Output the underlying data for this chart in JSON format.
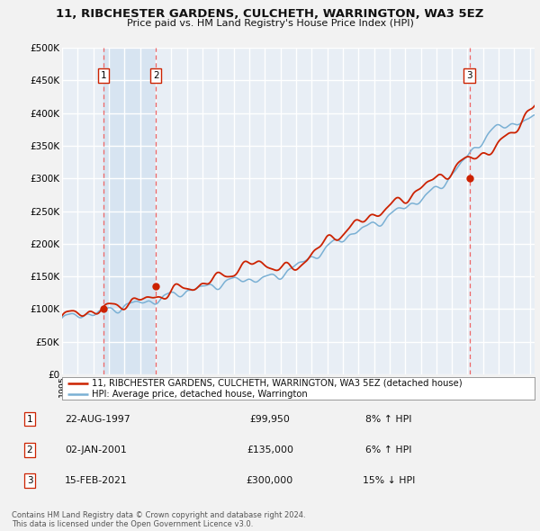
{
  "title": "11, RIBCHESTER GARDENS, CULCHETH, WARRINGTON, WA3 5EZ",
  "subtitle": "Price paid vs. HM Land Registry's House Price Index (HPI)",
  "ylim": [
    0,
    500000
  ],
  "yticks": [
    0,
    50000,
    100000,
    150000,
    200000,
    250000,
    300000,
    350000,
    400000,
    450000,
    500000
  ],
  "xlim_start": 1995.0,
  "xlim_end": 2025.3,
  "background_color": "#f0f0f0",
  "plot_bg_color": "#e8eef5",
  "grid_color": "#ffffff",
  "sale_color": "#cc2200",
  "hpi_color": "#7ab0d4",
  "vline_color": "#ee6666",
  "shade_color": "#d0e0f0",
  "transactions": [
    {
      "date": 1997.64,
      "price": 99950,
      "label": "1"
    },
    {
      "date": 2001.01,
      "price": 135000,
      "label": "2"
    },
    {
      "date": 2021.12,
      "price": 300000,
      "label": "3"
    }
  ],
  "transaction_table": [
    {
      "num": "1",
      "date": "22-AUG-1997",
      "price": "£99,950",
      "change": "8% ↑ HPI"
    },
    {
      "num": "2",
      "date": "02-JAN-2001",
      "price": "£135,000",
      "change": "6% ↑ HPI"
    },
    {
      "num": "3",
      "date": "15-FEB-2021",
      "price": "£300,000",
      "change": "15% ↓ HPI"
    }
  ],
  "footer": "Contains HM Land Registry data © Crown copyright and database right 2024.\nThis data is licensed under the Open Government Licence v3.0.",
  "legend_sale": "11, RIBCHESTER GARDENS, CULCHETH, WARRINGTON, WA3 5EZ (detached house)",
  "legend_hpi": "HPI: Average price, detached house, Warrington"
}
